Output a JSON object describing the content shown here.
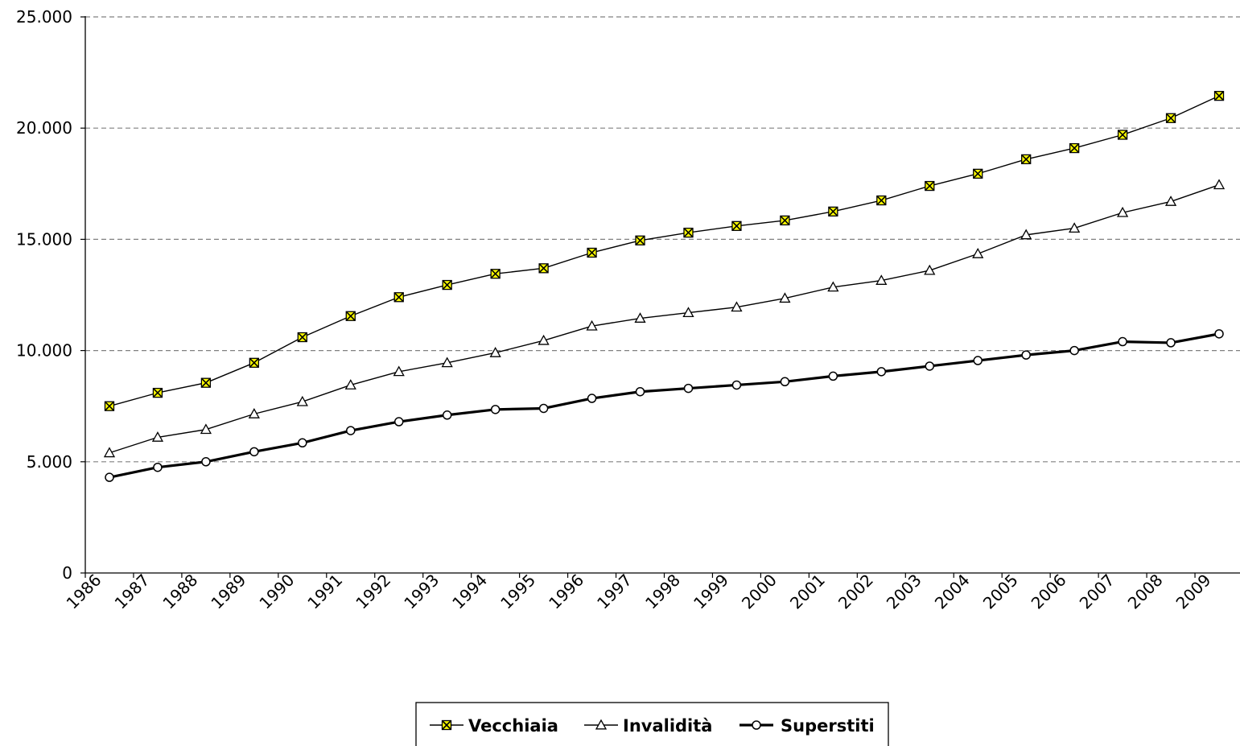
{
  "chart_data": {
    "type": "line",
    "title": "",
    "xlabel": "",
    "ylabel": "",
    "ylim": [
      0,
      25000
    ],
    "yticks": [
      0,
      5000,
      10000,
      15000,
      20000,
      25000
    ],
    "ytick_labels": [
      "0",
      "5.000",
      "10.000",
      "15.000",
      "20.000",
      "25.000"
    ],
    "grid": "horizontal dashed",
    "legend_position": "bottom",
    "categories": [
      "1986",
      "1987",
      "1988",
      "1989",
      "1990",
      "1991",
      "1992",
      "1993",
      "1994",
      "1995",
      "1996",
      "1997",
      "1998",
      "1999",
      "2000",
      "2001",
      "2002",
      "2003",
      "2004",
      "2005",
      "2006",
      "2007",
      "2008",
      "2009"
    ],
    "series": [
      {
        "name": "Vecchiaia",
        "marker": "square-x",
        "marker_color": "#ffff00",
        "values": [
          7500,
          8100,
          8550,
          9450,
          10600,
          11550,
          12400,
          12950,
          13450,
          13700,
          14400,
          14950,
          15300,
          15600,
          15850,
          16250,
          16750,
          17400,
          17950,
          18600,
          19100,
          19700,
          20450,
          21450
        ]
      },
      {
        "name": "Invalidità",
        "marker": "triangle",
        "marker_color": "#ffffff",
        "values": [
          5400,
          6100,
          6450,
          7150,
          7700,
          8450,
          9050,
          9450,
          9900,
          10450,
          11100,
          11450,
          11700,
          11950,
          12350,
          12850,
          13150,
          13600,
          14350,
          15200,
          15500,
          16200,
          16700,
          17450
        ]
      },
      {
        "name": "Superstiti",
        "marker": "circle",
        "marker_color": "#ffffff",
        "values": [
          4300,
          4750,
          5000,
          5450,
          5850,
          6400,
          6800,
          7100,
          7350,
          7400,
          7850,
          8150,
          8300,
          8450,
          8600,
          8850,
          9050,
          9300,
          9550,
          9800,
          10000,
          10400,
          10350,
          10750
        ]
      }
    ]
  }
}
